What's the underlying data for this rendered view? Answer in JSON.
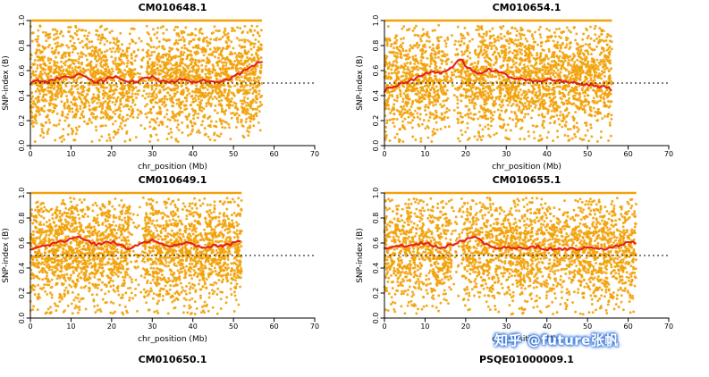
{
  "page": {
    "background": "#ffffff"
  },
  "colors": {
    "point": "#F2A20A",
    "red_line": "#E3211C",
    "threshold_line": "#000000",
    "axis": "#000000"
  },
  "watermark": {
    "text": "知乎 @future张帆",
    "color": "#ffffff",
    "glow": "#3f7bd9"
  },
  "next_row_titles": {
    "left": "CM010650.1",
    "right": "PSQE01000009.1"
  },
  "chart_data": [
    {
      "type": "scatter",
      "title": "CM010648.1",
      "xlabel": "chr_position (Mb)",
      "ylabel": "SNP-index (B)",
      "xlim": [
        0,
        70
      ],
      "ylim": [
        0,
        1
      ],
      "xticks": [
        0,
        10,
        20,
        30,
        40,
        50,
        60,
        70
      ],
      "yticks": [
        0,
        0.2,
        0.4,
        0.6,
        0.8,
        1.0
      ],
      "data_xmax": 57,
      "n_points": 2800,
      "seed": 11,
      "point_color": "#F2A20A",
      "top_band_y": 1.0,
      "threshold": 0.5,
      "sparse_regions": [
        [
          25.5,
          28.5
        ]
      ],
      "red_line": {
        "color": "#E3211C",
        "points": [
          [
            0,
            0.5
          ],
          [
            2,
            0.52
          ],
          [
            4,
            0.51
          ],
          [
            6,
            0.53
          ],
          [
            8,
            0.54
          ],
          [
            10,
            0.55
          ],
          [
            12,
            0.57
          ],
          [
            14,
            0.54
          ],
          [
            16,
            0.51
          ],
          [
            18,
            0.52
          ],
          [
            20,
            0.55
          ],
          [
            22,
            0.54
          ],
          [
            24,
            0.52
          ],
          [
            26,
            0.51
          ],
          [
            28,
            0.54
          ],
          [
            30,
            0.55
          ],
          [
            32,
            0.52
          ],
          [
            34,
            0.51
          ],
          [
            36,
            0.52
          ],
          [
            38,
            0.53
          ],
          [
            40,
            0.51
          ],
          [
            42,
            0.52
          ],
          [
            44,
            0.51
          ],
          [
            46,
            0.5
          ],
          [
            48,
            0.52
          ],
          [
            50,
            0.55
          ],
          [
            52,
            0.58
          ],
          [
            54,
            0.62
          ],
          [
            56,
            0.66
          ],
          [
            57,
            0.68
          ]
        ]
      }
    },
    {
      "type": "scatter",
      "title": "CM010654.1",
      "xlabel": "chr_position (Mb)",
      "ylabel": "SNP-index (B)",
      "xlim": [
        0,
        70
      ],
      "ylim": [
        0,
        1
      ],
      "xticks": [
        0,
        10,
        20,
        30,
        40,
        50,
        60,
        70
      ],
      "yticks": [
        0,
        0.2,
        0.4,
        0.6,
        0.8,
        1.0
      ],
      "data_xmax": 56,
      "n_points": 2800,
      "seed": 22,
      "point_color": "#F2A20A",
      "top_band_y": 1.0,
      "threshold": 0.5,
      "sparse_regions": [
        [
          15.5,
          18
        ]
      ],
      "red_line": {
        "color": "#E3211C",
        "points": [
          [
            0,
            0.44
          ],
          [
            2,
            0.47
          ],
          [
            4,
            0.5
          ],
          [
            6,
            0.52
          ],
          [
            8,
            0.54
          ],
          [
            10,
            0.57
          ],
          [
            12,
            0.6
          ],
          [
            14,
            0.58
          ],
          [
            16,
            0.61
          ],
          [
            18,
            0.67
          ],
          [
            19,
            0.69
          ],
          [
            20,
            0.64
          ],
          [
            22,
            0.6
          ],
          [
            24,
            0.57
          ],
          [
            26,
            0.61
          ],
          [
            28,
            0.59
          ],
          [
            30,
            0.56
          ],
          [
            32,
            0.54
          ],
          [
            34,
            0.53
          ],
          [
            36,
            0.52
          ],
          [
            38,
            0.51
          ],
          [
            40,
            0.52
          ],
          [
            42,
            0.53
          ],
          [
            44,
            0.51
          ],
          [
            46,
            0.5
          ],
          [
            48,
            0.5
          ],
          [
            50,
            0.49
          ],
          [
            52,
            0.48
          ],
          [
            54,
            0.47
          ],
          [
            56,
            0.45
          ]
        ]
      }
    },
    {
      "type": "scatter",
      "title": "CM010649.1",
      "xlabel": "chr_position (Mb)",
      "ylabel": "SNP-index (B)",
      "xlim": [
        0,
        70
      ],
      "ylim": [
        0,
        1
      ],
      "xticks": [
        0,
        10,
        20,
        30,
        40,
        50,
        60,
        70
      ],
      "yticks": [
        0,
        0.2,
        0.4,
        0.6,
        0.8,
        1.0
      ],
      "data_xmax": 52,
      "n_points": 2800,
      "seed": 33,
      "point_color": "#F2A20A",
      "top_band_y": 1.0,
      "threshold": 0.5,
      "sparse_regions": [
        [
          24.5,
          28
        ]
      ],
      "red_line": {
        "color": "#E3211C",
        "points": [
          [
            0,
            0.55
          ],
          [
            2,
            0.56
          ],
          [
            4,
            0.58
          ],
          [
            6,
            0.6
          ],
          [
            8,
            0.61
          ],
          [
            10,
            0.63
          ],
          [
            12,
            0.65
          ],
          [
            14,
            0.62
          ],
          [
            16,
            0.59
          ],
          [
            18,
            0.6
          ],
          [
            20,
            0.61
          ],
          [
            22,
            0.58
          ],
          [
            24,
            0.56
          ],
          [
            26,
            0.58
          ],
          [
            28,
            0.6
          ],
          [
            30,
            0.62
          ],
          [
            32,
            0.59
          ],
          [
            34,
            0.57
          ],
          [
            36,
            0.58
          ],
          [
            38,
            0.6
          ],
          [
            40,
            0.59
          ],
          [
            42,
            0.57
          ],
          [
            44,
            0.57
          ],
          [
            46,
            0.58
          ],
          [
            48,
            0.58
          ],
          [
            50,
            0.6
          ],
          [
            52,
            0.62
          ]
        ]
      }
    },
    {
      "type": "scatter",
      "title": "CM010655.1",
      "xlabel": "chr_position (Mb)",
      "ylabel": "SNP-index (B)",
      "xlim": [
        0,
        70
      ],
      "ylim": [
        0,
        1
      ],
      "xticks": [
        0,
        10,
        20,
        30,
        40,
        50,
        60,
        70
      ],
      "yticks": [
        0,
        0.2,
        0.4,
        0.6,
        0.8,
        1.0
      ],
      "data_xmax": 62,
      "n_points": 2900,
      "seed": 44,
      "point_color": "#F2A20A",
      "top_band_y": 1.0,
      "threshold": 0.5,
      "sparse_regions": [
        [
          16.5,
          19
        ]
      ],
      "red_line": {
        "color": "#E3211C",
        "points": [
          [
            0,
            0.55
          ],
          [
            2,
            0.57
          ],
          [
            4,
            0.58
          ],
          [
            6,
            0.57
          ],
          [
            8,
            0.59
          ],
          [
            10,
            0.6
          ],
          [
            12,
            0.58
          ],
          [
            14,
            0.56
          ],
          [
            16,
            0.58
          ],
          [
            18,
            0.61
          ],
          [
            20,
            0.63
          ],
          [
            22,
            0.65
          ],
          [
            24,
            0.61
          ],
          [
            26,
            0.58
          ],
          [
            28,
            0.56
          ],
          [
            30,
            0.57
          ],
          [
            32,
            0.56
          ],
          [
            34,
            0.55
          ],
          [
            36,
            0.56
          ],
          [
            38,
            0.57
          ],
          [
            40,
            0.55
          ],
          [
            42,
            0.56
          ],
          [
            44,
            0.55
          ],
          [
            46,
            0.56
          ],
          [
            48,
            0.55
          ],
          [
            50,
            0.57
          ],
          [
            52,
            0.56
          ],
          [
            54,
            0.55
          ],
          [
            56,
            0.57
          ],
          [
            58,
            0.58
          ],
          [
            60,
            0.6
          ],
          [
            62,
            0.61
          ]
        ]
      }
    }
  ]
}
